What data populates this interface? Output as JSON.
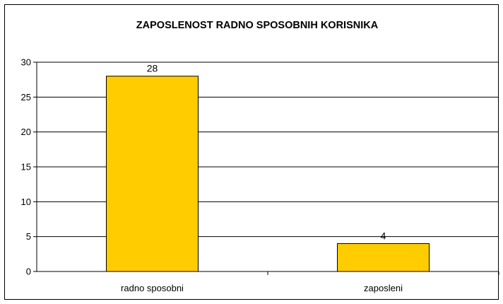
{
  "chart_data": {
    "type": "bar",
    "title": "ZAPOSLENOST RADNO SPOSOBNIH KORISNIKA",
    "categories": [
      "radno sposobni",
      "zaposleni"
    ],
    "values": [
      28,
      4
    ],
    "data_labels": [
      "28",
      "4"
    ],
    "ylim": [
      0,
      30
    ],
    "yticks": [
      0,
      5,
      10,
      15,
      20,
      25,
      30
    ],
    "ytick_labels": [
      "0",
      "5",
      "10",
      "15",
      "20",
      "25",
      "30"
    ],
    "xlabel": "",
    "ylabel": "",
    "grid": true,
    "legend": "none",
    "bar_color": "#FFCC00",
    "bar_edge_color": "#000000"
  }
}
